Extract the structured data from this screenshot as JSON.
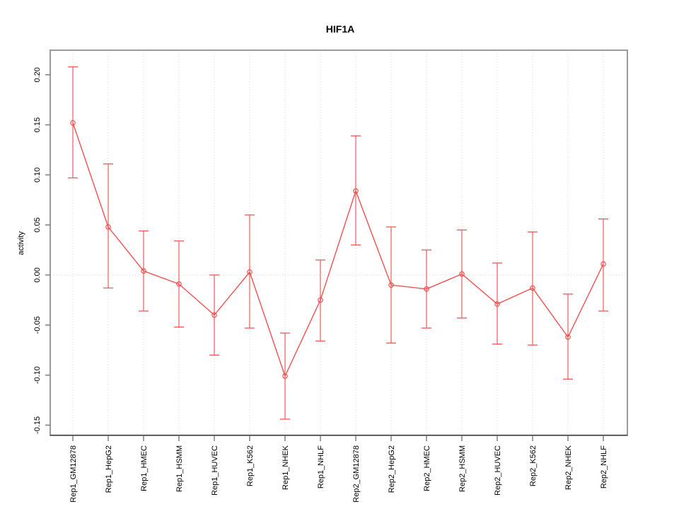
{
  "chart_data": {
    "type": "line",
    "subtype": "points-with-error-bars",
    "title": "HIF1A",
    "xlabel": "",
    "ylabel": "activity",
    "categories": [
      "Rep1_GM12878",
      "Rep1_HepG2",
      "Rep1_HMEC",
      "Rep1_HSMM",
      "Rep1_HUVEC",
      "Rep1_K562",
      "Rep1_NHEK",
      "Rep1_NHLF",
      "Rep2_GM12878",
      "Rep2_HepG2",
      "Rep2_HMEC",
      "Rep2_HSMM",
      "Rep2_HUVEC",
      "Rep2_K562",
      "Rep2_NHEK",
      "Rep2_NHLF"
    ],
    "values": [
      0.152,
      0.048,
      0.004,
      -0.009,
      -0.04,
      0.003,
      -0.101,
      -0.025,
      0.084,
      -0.01,
      -0.014,
      0.001,
      -0.029,
      -0.013,
      -0.062,
      0.011
    ],
    "error_low": [
      0.097,
      -0.013,
      -0.036,
      -0.052,
      -0.08,
      -0.053,
      -0.144,
      -0.066,
      0.03,
      -0.068,
      -0.053,
      -0.043,
      -0.069,
      -0.07,
      -0.104,
      -0.036
    ],
    "error_high": [
      0.208,
      0.111,
      0.044,
      0.034,
      0.0,
      0.06,
      -0.058,
      0.015,
      0.139,
      0.048,
      0.025,
      0.045,
      0.012,
      0.043,
      -0.019,
      0.056
    ],
    "ylim": [
      -0.16,
      0.225
    ],
    "yticks": [
      0.2,
      0.15,
      0.1,
      0.05,
      0.0,
      -0.05,
      -0.1,
      -0.15
    ],
    "ytick_labels": [
      "0.20",
      "0.15",
      "0.10",
      "0.05",
      "0.00",
      "-0.05",
      "-0.10",
      "-0.15"
    ],
    "grid": "vertical dotted gridline at each category; dotted horizontal line at y=0",
    "legend": "none",
    "marker": "open-circle",
    "colors": {
      "series": "#f25050",
      "grid": "#d8d8d8",
      "box_border": "#9a9a9a",
      "bottom_axis": "#3f3f3f",
      "ticks": "#777777",
      "text": "#000000",
      "background": "#ffffff"
    }
  }
}
